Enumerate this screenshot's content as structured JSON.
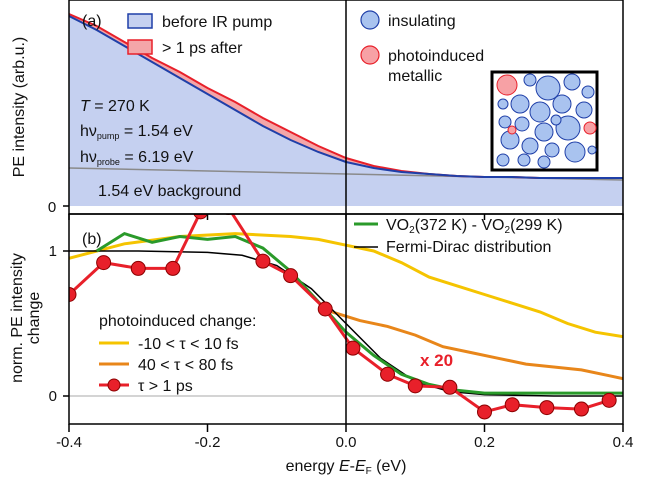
{
  "chart_data": [
    {
      "panel_label": "(a)",
      "type": "area",
      "ylabel": "PE intensity (arb.u.)",
      "ytick_labels": [
        "0"
      ],
      "ylim": [
        0,
        1.0
      ],
      "xlim": [
        -0.4,
        0.4
      ],
      "legend": [
        "before IR pump",
        "> 1 ps after"
      ],
      "legend_position": "top-left",
      "inset_legend": [
        "insulating",
        "photoinduced",
        "metallic"
      ],
      "annotations": {
        "temperature": "T = 270 K",
        "pump": "hνpump = 1.54 eV",
        "probe": "hνprobe = 6.19 eV",
        "background": "1.54 eV background"
      },
      "colors": {
        "before": "#1f3fa8",
        "before_fill": "#c5d0f0",
        "after": "#e8202a",
        "after_fill": "#f4a6a8",
        "background": "#dcdcdc",
        "inset_metallic": "#f7a1a5",
        "inset_insulating": "#a9c3ef"
      },
      "series": [
        {
          "name": "before IR pump",
          "x": [
            -0.4,
            -0.36,
            -0.32,
            -0.28,
            -0.24,
            -0.2,
            -0.16,
            -0.12,
            -0.08,
            -0.04,
            0.0,
            0.04,
            0.08,
            0.12,
            0.16,
            0.2,
            0.24,
            0.28,
            0.32,
            0.36,
            0.4
          ],
          "y": [
            0.95,
            0.88,
            0.8,
            0.72,
            0.64,
            0.56,
            0.48,
            0.4,
            0.33,
            0.27,
            0.22,
            0.19,
            0.17,
            0.16,
            0.15,
            0.145,
            0.145,
            0.14,
            0.14,
            0.14,
            0.14
          ]
        },
        {
          "name": "> 1 ps after",
          "x": [
            -0.4,
            -0.36,
            -0.32,
            -0.28,
            -0.24,
            -0.2,
            -0.16,
            -0.12,
            -0.08,
            -0.04,
            0.0,
            0.04,
            0.08,
            0.12,
            0.16,
            0.2,
            0.24,
            0.28,
            0.32,
            0.36,
            0.4
          ],
          "y": [
            0.96,
            0.9,
            0.82,
            0.74,
            0.67,
            0.59,
            0.52,
            0.44,
            0.37,
            0.3,
            0.24,
            0.2,
            0.175,
            0.16,
            0.15,
            0.145,
            0.145,
            0.14,
            0.14,
            0.14,
            0.14
          ]
        },
        {
          "name": "1.54 eV background",
          "x": [
            -0.4,
            0.4
          ],
          "y": [
            0.19,
            0.13
          ]
        }
      ]
    },
    {
      "panel_label": "(b)",
      "type": "line",
      "ylabel": "norm. PE intensity change",
      "ytick_labels": [
        "0",
        "1"
      ],
      "ylim": [
        -0.12,
        1.3
      ],
      "xlim": [
        -0.4,
        0.4
      ],
      "xlabel": "energy E-EF (eV)",
      "xtick_labels": [
        "-0.4",
        "-0.2",
        "0.0",
        "0.2",
        "0.4"
      ],
      "legend_title": "photoinduced change:",
      "scale_annotation": "x 20",
      "legend_top": [
        "VO2(372 K) - VO2(299 K)",
        "Fermi-Dirac distribution"
      ],
      "colors": {
        "yellow": "#f5c400",
        "orange": "#e8861a",
        "red": "#e8202a",
        "green": "#2a9a2a",
        "black": "#000000"
      },
      "series": [
        {
          "name": "-10 < τ < 10 fs",
          "x": [
            -0.4,
            -0.32,
            -0.24,
            -0.16,
            -0.08,
            -0.04,
            0.0,
            0.04,
            0.08,
            0.12,
            0.16,
            0.2,
            0.24,
            0.28,
            0.32,
            0.36,
            0.4
          ],
          "y": [
            0.95,
            1.05,
            1.1,
            1.12,
            1.1,
            1.08,
            1.04,
            1.0,
            0.92,
            0.82,
            0.76,
            0.7,
            0.64,
            0.58,
            0.5,
            0.44,
            0.41
          ]
        },
        {
          "name": "40 < τ < 80 fs",
          "x": [
            -0.02,
            0.02,
            0.06,
            0.1,
            0.14,
            0.18,
            0.22,
            0.26,
            0.3,
            0.34,
            0.38,
            0.4
          ],
          "y": [
            0.58,
            0.52,
            0.48,
            0.42,
            0.34,
            0.3,
            0.26,
            0.22,
            0.2,
            0.18,
            0.14,
            0.12
          ]
        },
        {
          "name": "τ > 1 ps",
          "x": [
            -0.4,
            -0.35,
            -0.3,
            -0.25,
            -0.21,
            -0.17,
            -0.12,
            -0.08,
            -0.03,
            0.01,
            0.06,
            0.1,
            0.15,
            0.2,
            0.24,
            0.29,
            0.34,
            0.38
          ],
          "y": [
            0.7,
            0.92,
            0.88,
            0.88,
            1.27,
            1.3,
            0.93,
            0.83,
            0.6,
            0.33,
            0.15,
            0.07,
            0.06,
            -0.11,
            -0.06,
            -0.08,
            -0.09,
            -0.03
          ]
        },
        {
          "name": "VO2(372 K) - VO2(299 K)",
          "x": [
            -0.36,
            -0.32,
            -0.28,
            -0.24,
            -0.2,
            -0.16,
            -0.12,
            -0.08,
            -0.04,
            0.0,
            0.04,
            0.08,
            0.12,
            0.16,
            0.2,
            0.24,
            0.28,
            0.32,
            0.36,
            0.4
          ],
          "y": [
            1.0,
            1.12,
            1.06,
            1.1,
            1.08,
            1.1,
            1.02,
            0.86,
            0.65,
            0.44,
            0.28,
            0.15,
            0.08,
            0.04,
            0.02,
            0.02,
            0.02,
            0.02,
            0.02,
            0.02
          ]
        },
        {
          "name": "Fermi-Dirac distribution",
          "x": [
            -0.4,
            -0.3,
            -0.2,
            -0.15,
            -0.1,
            -0.05,
            0.0,
            0.05,
            0.1,
            0.15,
            0.2,
            0.3,
            0.4
          ],
          "y": [
            1.0,
            1.0,
            0.99,
            0.97,
            0.9,
            0.74,
            0.5,
            0.26,
            0.1,
            0.03,
            0.01,
            0.0,
            0.0
          ]
        }
      ]
    }
  ]
}
